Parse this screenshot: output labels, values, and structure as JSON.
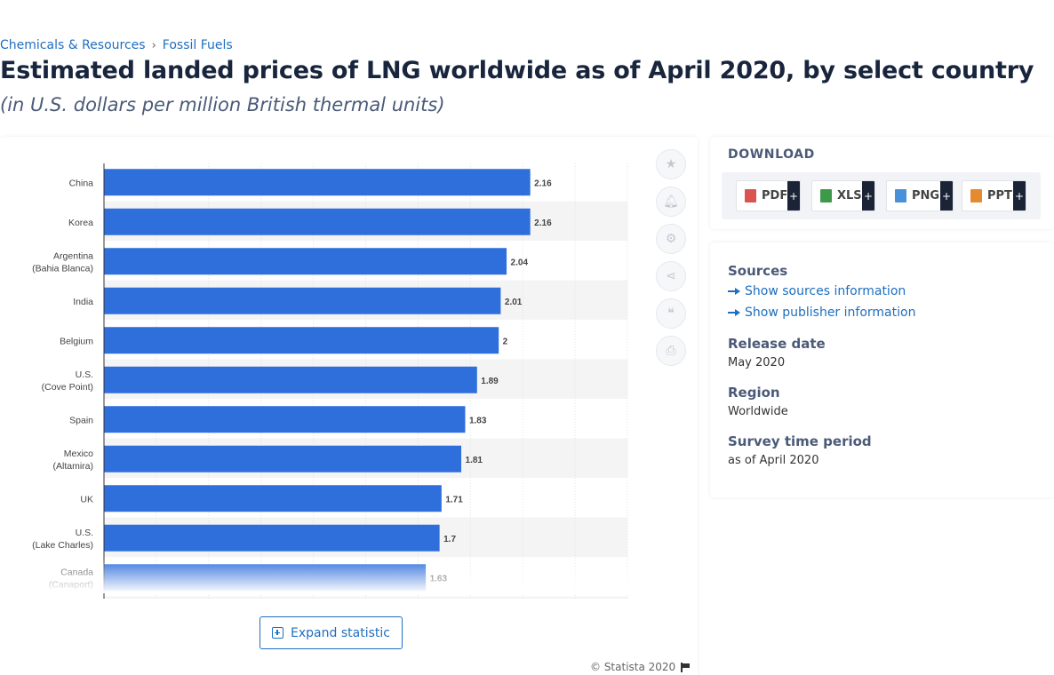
{
  "breadcrumb": {
    "items": [
      "Chemicals & Resources",
      "Fossil Fuels"
    ],
    "separator": "›"
  },
  "page": {
    "title": "Estimated landed prices of LNG worldwide as of April 2020, by select country",
    "subtitle": "(in U.S. dollars per million British thermal units)"
  },
  "chart_data": {
    "type": "bar",
    "orientation": "horizontal",
    "categories": [
      [
        "China"
      ],
      [
        "Korea"
      ],
      [
        "Argentina",
        "(Bahia Blanca)"
      ],
      [
        "India"
      ],
      [
        "Belgium"
      ],
      [
        "U.S.",
        "(Cove Point)"
      ],
      [
        "Spain"
      ],
      [
        "Mexico",
        "(Altamira)"
      ],
      [
        "UK"
      ],
      [
        "U.S.",
        "(Lake Charles)"
      ],
      [
        "Canada",
        "(Canaport)"
      ]
    ],
    "values": [
      2.16,
      2.16,
      2.04,
      2.01,
      2,
      1.89,
      1.83,
      1.81,
      1.71,
      1.7,
      1.63
    ],
    "value_labels": [
      "2.16",
      "2.16",
      "2.04",
      "2.01",
      "2",
      "1.89",
      "1.83",
      "1.81",
      "1.71",
      "1.7",
      "1.63"
    ],
    "xlim": [
      0,
      2.5
    ],
    "grid": true,
    "bar_color": "#2f6fdc",
    "row_stripe_color": "#f4f4f4"
  },
  "toolbar": {
    "icons": [
      "star-icon",
      "bell-icon",
      "gear-icon",
      "share-icon",
      "quote-icon",
      "print-icon"
    ]
  },
  "expand": {
    "label": "Expand statistic"
  },
  "copyright": {
    "text": "© Statista 2020"
  },
  "download": {
    "title": "DOWNLOAD",
    "formats": [
      {
        "label": "PDF",
        "color": "#d9534f"
      },
      {
        "label": "XLS",
        "color": "#3c9a4a"
      },
      {
        "label": "PNG",
        "color": "#4a90d9"
      },
      {
        "label": "PPT",
        "color": "#e58a2e"
      }
    ],
    "plus": "+"
  },
  "info": {
    "sources_heading": "Sources",
    "show_sources": "Show sources information",
    "show_publisher": "Show publisher information",
    "release_heading": "Release date",
    "release_value": "May 2020",
    "region_heading": "Region",
    "region_value": "Worldwide",
    "survey_heading": "Survey time period",
    "survey_value": "as of April 2020"
  }
}
